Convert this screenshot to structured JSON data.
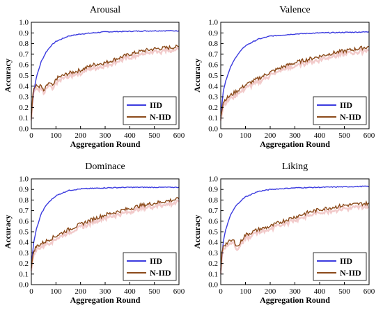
{
  "colors": {
    "IID": "#3b3bdf",
    "N-IID": "#8b4a1a",
    "noise": "#e8a0a0"
  },
  "chart_data": [
    {
      "type": "line",
      "title": "Arousal",
      "xlabel": "Aggregation Round",
      "ylabel": "Accuracy",
      "xlim": [
        0,
        600
      ],
      "ylim": [
        0.0,
        1.0
      ],
      "xticks": [
        "0",
        "100",
        "200",
        "300",
        "400",
        "500",
        "600"
      ],
      "yticks": [
        "0.0",
        "0.1",
        "0.2",
        "0.3",
        "0.4",
        "0.5",
        "0.6",
        "0.7",
        "0.8",
        "0.9",
        "1.0"
      ],
      "grid": false,
      "legend": "bottom-right",
      "series": [
        {
          "name": "IID",
          "color": "#3b3bdf",
          "x": [
            0,
            10,
            20,
            40,
            60,
            80,
            100,
            150,
            200,
            300,
            400,
            500,
            600
          ],
          "y": [
            0.15,
            0.35,
            0.48,
            0.63,
            0.72,
            0.78,
            0.82,
            0.87,
            0.89,
            0.91,
            0.915,
            0.92,
            0.92
          ]
        },
        {
          "name": "N-IID",
          "color": "#8b4a1a",
          "x": [
            0,
            5,
            10,
            20,
            40,
            50,
            70,
            90,
            100,
            150,
            200,
            250,
            300,
            350,
            400,
            450,
            500,
            550,
            600
          ],
          "y": [
            0.12,
            0.3,
            0.38,
            0.4,
            0.4,
            0.35,
            0.43,
            0.4,
            0.47,
            0.52,
            0.55,
            0.6,
            0.62,
            0.66,
            0.7,
            0.73,
            0.75,
            0.76,
            0.77
          ]
        }
      ]
    },
    {
      "type": "line",
      "title": "Valence",
      "xlabel": "Aggregation Round",
      "ylabel": "Accuracy",
      "xlim": [
        0,
        600
      ],
      "ylim": [
        0.0,
        1.0
      ],
      "xticks": [
        "0",
        "100",
        "200",
        "300",
        "400",
        "500",
        "600"
      ],
      "yticks": [
        "0.0",
        "0.1",
        "0.2",
        "0.3",
        "0.4",
        "0.5",
        "0.6",
        "0.7",
        "0.8",
        "0.9",
        "1.0"
      ],
      "grid": false,
      "legend": "bottom-right",
      "series": [
        {
          "name": "IID",
          "color": "#3b3bdf",
          "x": [
            0,
            10,
            20,
            40,
            60,
            80,
            100,
            150,
            200,
            300,
            400,
            500,
            600
          ],
          "y": [
            0.12,
            0.35,
            0.45,
            0.58,
            0.67,
            0.73,
            0.78,
            0.84,
            0.87,
            0.89,
            0.9,
            0.905,
            0.91
          ]
        },
        {
          "name": "N-IID",
          "color": "#8b4a1a",
          "x": [
            0,
            10,
            20,
            50,
            100,
            150,
            200,
            250,
            300,
            350,
            400,
            450,
            500,
            550,
            600
          ],
          "y": [
            0.12,
            0.25,
            0.28,
            0.33,
            0.41,
            0.47,
            0.53,
            0.58,
            0.62,
            0.65,
            0.68,
            0.71,
            0.73,
            0.75,
            0.77
          ]
        }
      ]
    },
    {
      "type": "line",
      "title": "Dominace",
      "xlabel": "Aggregation Round",
      "ylabel": "Accuracy",
      "xlim": [
        0,
        600
      ],
      "ylim": [
        0.0,
        1.0
      ],
      "xticks": [
        "0",
        "100",
        "200",
        "300",
        "400",
        "500",
        "600"
      ],
      "yticks": [
        "0.0",
        "0.1",
        "0.2",
        "0.3",
        "0.4",
        "0.5",
        "0.6",
        "0.7",
        "0.8",
        "0.9",
        "1.0"
      ],
      "grid": false,
      "legend": "bottom-right",
      "series": [
        {
          "name": "IID",
          "color": "#3b3bdf",
          "x": [
            0,
            10,
            20,
            40,
            60,
            80,
            100,
            150,
            200,
            300,
            400,
            500,
            600
          ],
          "y": [
            0.2,
            0.4,
            0.52,
            0.67,
            0.75,
            0.8,
            0.84,
            0.89,
            0.905,
            0.915,
            0.92,
            0.92,
            0.92
          ]
        },
        {
          "name": "N-IID",
          "color": "#8b4a1a",
          "x": [
            0,
            10,
            20,
            50,
            100,
            150,
            200,
            250,
            300,
            350,
            400,
            450,
            500,
            550,
            600
          ],
          "y": [
            0.17,
            0.32,
            0.36,
            0.4,
            0.46,
            0.52,
            0.57,
            0.62,
            0.66,
            0.69,
            0.72,
            0.75,
            0.77,
            0.79,
            0.81
          ]
        }
      ]
    },
    {
      "type": "line",
      "title": "Liking",
      "xlabel": "Aggregation Round",
      "ylabel": "Accuracy",
      "xlim": [
        0,
        600
      ],
      "ylim": [
        0.0,
        1.0
      ],
      "xticks": [
        "0",
        "100",
        "200",
        "300",
        "400",
        "500",
        "600"
      ],
      "yticks": [
        "0.0",
        "0.1",
        "0.2",
        "0.3",
        "0.4",
        "0.5",
        "0.6",
        "0.7",
        "0.8",
        "0.9",
        "1.0"
      ],
      "grid": false,
      "legend": "bottom-right",
      "series": [
        {
          "name": "IID",
          "color": "#3b3bdf",
          "x": [
            0,
            10,
            20,
            40,
            60,
            80,
            100,
            150,
            200,
            300,
            400,
            500,
            600
          ],
          "y": [
            0.15,
            0.4,
            0.52,
            0.66,
            0.74,
            0.79,
            0.83,
            0.88,
            0.9,
            0.915,
            0.92,
            0.925,
            0.93
          ]
        },
        {
          "name": "N-IID",
          "color": "#8b4a1a",
          "x": [
            0,
            5,
            10,
            30,
            50,
            70,
            90,
            100,
            150,
            200,
            250,
            300,
            350,
            400,
            450,
            500,
            550,
            600
          ],
          "y": [
            0.12,
            0.3,
            0.37,
            0.4,
            0.42,
            0.36,
            0.44,
            0.47,
            0.52,
            0.55,
            0.6,
            0.64,
            0.68,
            0.71,
            0.73,
            0.75,
            0.76,
            0.77
          ]
        }
      ]
    }
  ]
}
